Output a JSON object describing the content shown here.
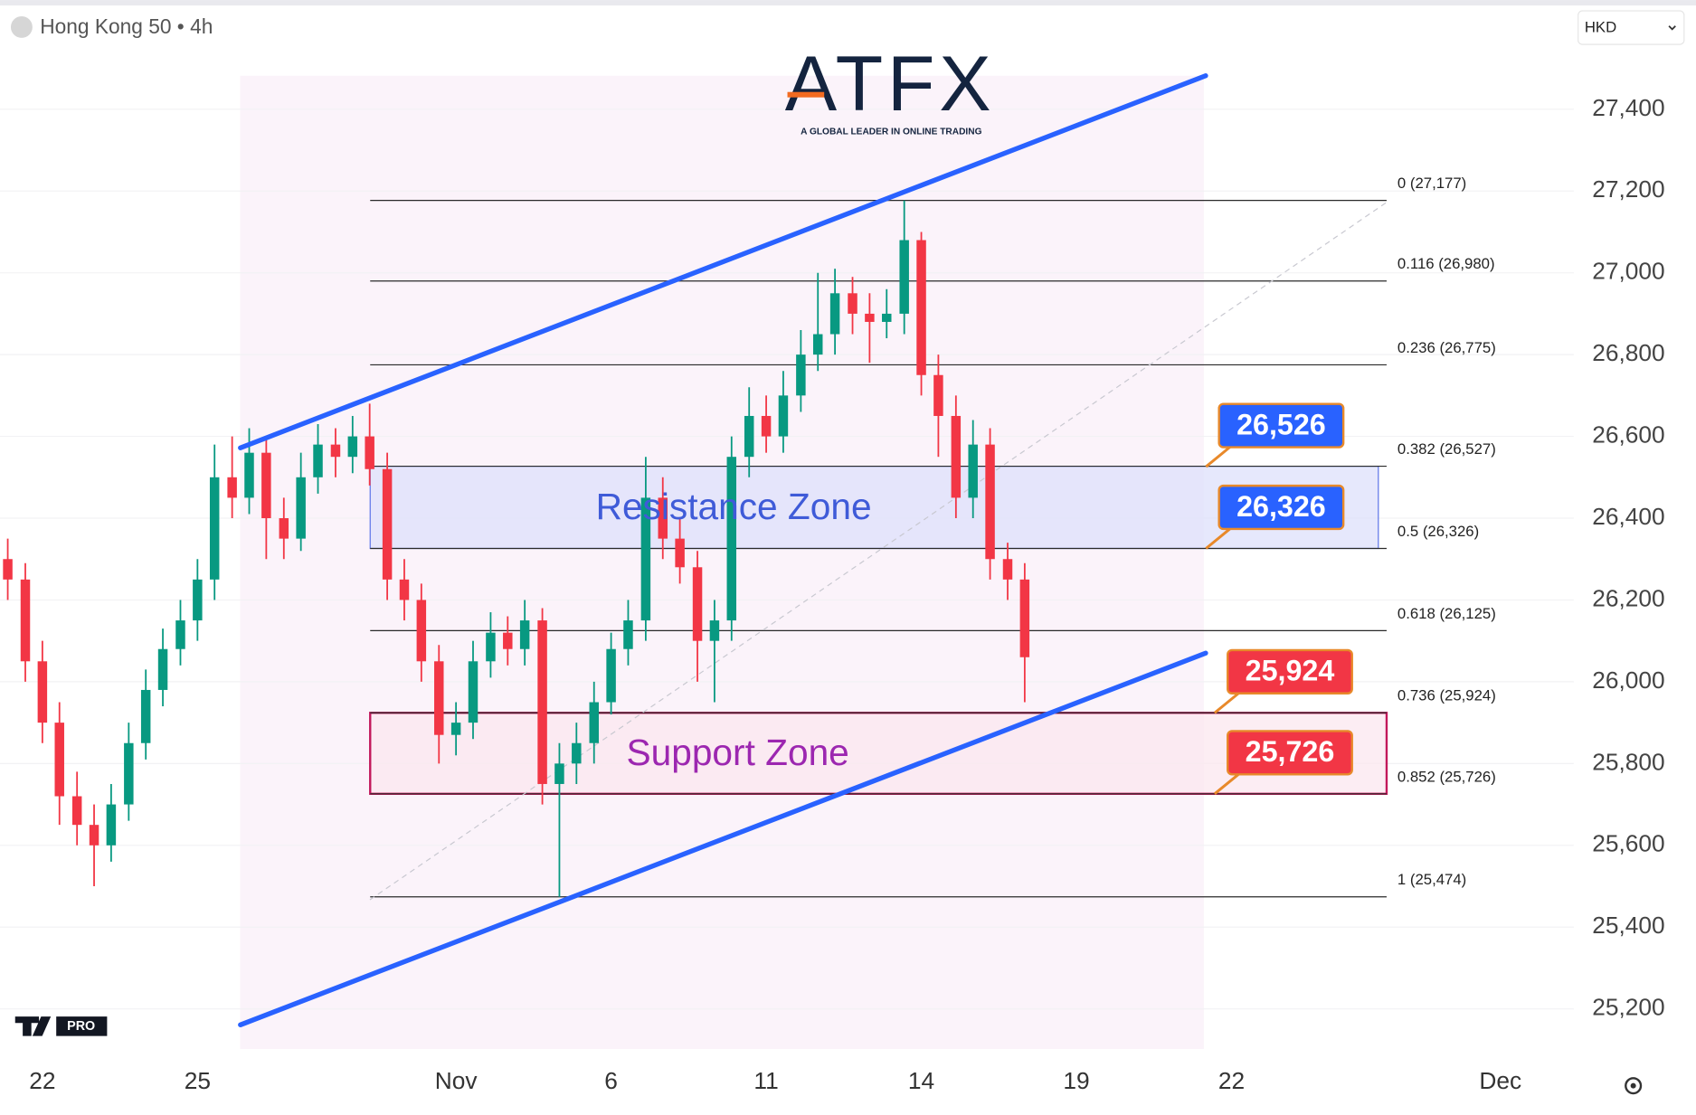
{
  "header": {
    "symbol": "Hong Kong 50 • 4h",
    "currency": "HKD"
  },
  "logo": {
    "name": "ATFX",
    "tagline": "A GLOBAL LEADER IN ONLINE TRADING"
  },
  "badge": "PRO",
  "chart_data": {
    "type": "candlestick",
    "up_color": "#089981",
    "down_color": "#f23645",
    "xlim": [
      -0.82,
      29.62
    ],
    "ylim": [
      25102,
      27667
    ],
    "grid": true,
    "yticks": [
      {
        "value": 25200,
        "label": "25,200"
      },
      {
        "value": 25400,
        "label": "25,400"
      },
      {
        "value": 25600,
        "label": "25,600"
      },
      {
        "value": 25800,
        "label": "25,800"
      },
      {
        "value": 26000,
        "label": "26,000"
      },
      {
        "value": 26200,
        "label": "26,200"
      },
      {
        "value": 26400,
        "label": "26,400"
      },
      {
        "value": 26600,
        "label": "26,600"
      },
      {
        "value": 26800,
        "label": "26,800"
      },
      {
        "value": 27000,
        "label": "27,000"
      },
      {
        "value": 27200,
        "label": "27,200"
      },
      {
        "value": 27400,
        "label": "27,400"
      }
    ],
    "xticks": [
      {
        "value": 0,
        "label": "22"
      },
      {
        "value": 3,
        "label": "25"
      },
      {
        "value": 8,
        "label": "Nov"
      },
      {
        "value": 11,
        "label": "6"
      },
      {
        "value": 14,
        "label": "11"
      },
      {
        "value": 17,
        "label": "14"
      },
      {
        "value": 20,
        "label": "19"
      },
      {
        "value": 23,
        "label": "22"
      },
      {
        "value": 28.2,
        "label": "Dec"
      }
    ],
    "x": [
      -0.67,
      -0.33,
      0,
      0.33,
      0.67,
      1,
      1.33,
      1.67,
      2,
      2.33,
      2.67,
      3,
      3.33,
      3.67,
      4,
      4.33,
      4.67,
      5,
      5.33,
      5.67,
      6,
      6.33,
      6.67,
      7,
      7.33,
      7.67,
      8,
      8.33,
      8.67,
      9,
      9.33,
      9.67,
      10,
      10.33,
      10.67,
      11,
      11.33,
      11.67,
      12,
      12.33,
      12.67,
      13,
      13.33,
      13.67,
      14,
      14.33,
      14.67,
      15,
      15.33,
      15.67,
      16,
      16.33,
      16.67,
      17,
      17.33,
      17.67,
      18,
      18.33,
      18.67,
      19
    ],
    "open": [
      26300,
      26250,
      26050,
      25900,
      25720,
      25650,
      25600,
      25700,
      25850,
      25980,
      26080,
      26150,
      26250,
      26500,
      26450,
      26560,
      26400,
      26350,
      26500,
      26580,
      26550,
      26600,
      26520,
      26250,
      26200,
      26050,
      25870,
      25900,
      26050,
      26120,
      26080,
      26150,
      25750,
      25800,
      25850,
      25950,
      26080,
      26150,
      26450,
      26350,
      26280,
      26100,
      26150,
      26550,
      26650,
      26600,
      26700,
      26800,
      26850,
      26950,
      26900,
      26880,
      26900,
      27080,
      26750,
      26650,
      26450,
      26580,
      26300,
      26250
    ],
    "high": [
      26350,
      26290,
      26100,
      25950,
      25780,
      25700,
      25750,
      25900,
      26030,
      26130,
      26200,
      26300,
      26580,
      26600,
      26620,
      26600,
      26450,
      26560,
      26630,
      26620,
      26650,
      26680,
      26560,
      26300,
      26240,
      26090,
      25950,
      26100,
      26170,
      26160,
      26200,
      26180,
      25850,
      25900,
      26000,
      26120,
      26200,
      26550,
      26500,
      26400,
      26320,
      26200,
      26600,
      26720,
      26700,
      26760,
      26860,
      27000,
      27010,
      26990,
      26950,
      26960,
      27177,
      27100,
      26800,
      26700,
      26640,
      26620,
      26340,
      26290
    ],
    "low": [
      26200,
      26000,
      25850,
      25650,
      25600,
      25500,
      25560,
      25660,
      25810,
      25940,
      26040,
      26100,
      26200,
      26400,
      26410,
      26300,
      26300,
      26320,
      26460,
      26500,
      26510,
      26480,
      26200,
      26150,
      26000,
      25800,
      25820,
      25860,
      26010,
      26040,
      26040,
      25700,
      25474,
      25750,
      25800,
      25920,
      26040,
      26100,
      26300,
      26240,
      26000,
      25950,
      26100,
      26500,
      26560,
      26560,
      26660,
      26760,
      26800,
      26850,
      26780,
      26840,
      26850,
      26700,
      26550,
      26400,
      26400,
      26250,
      26200,
      25950
    ],
    "close": [
      26250,
      26050,
      25900,
      25720,
      25650,
      25600,
      25700,
      25850,
      25980,
      26080,
      26150,
      26250,
      26500,
      26450,
      26560,
      26400,
      26350,
      26500,
      26580,
      26550,
      26600,
      26520,
      26250,
      26200,
      26050,
      25870,
      25900,
      26050,
      26120,
      26080,
      26150,
      25750,
      25800,
      25850,
      25950,
      26080,
      26150,
      26450,
      26350,
      26280,
      26100,
      26150,
      26550,
      26650,
      26600,
      26700,
      26800,
      26850,
      26950,
      26900,
      26880,
      26900,
      27080,
      26750,
      26650,
      26450,
      26580,
      26300,
      26250,
      26060
    ],
    "trendlines": [
      {
        "color": "#2962ff",
        "x": [
          3.83,
          22.5
        ],
        "values": [
          26572,
          27482
        ]
      },
      {
        "color": "#2962ff",
        "x": [
          3.83,
          22.5
        ],
        "values": [
          25161,
          26070
        ]
      }
    ],
    "fib_x": [
      6.34,
      26.0
    ],
    "fib": [
      {
        "label": "0 (27,177)",
        "value": 27177
      },
      {
        "label": "0.116 (26,980)",
        "value": 26980
      },
      {
        "label": "0.236 (26,775)",
        "value": 26775
      },
      {
        "label": "0.382 (26,527)",
        "value": 26527
      },
      {
        "label": "0.5 (26,326)",
        "value": 26326
      },
      {
        "label": "0.618 (26,125)",
        "value": 26125
      },
      {
        "label": "0.736 (25,924)",
        "value": 25924
      },
      {
        "label": "0.852 (25,726)",
        "value": 25726
      },
      {
        "label": "1 (25,474)",
        "value": 25474
      }
    ],
    "zones": [
      {
        "label": "Resistance Zone",
        "top": 26527,
        "bottom": 26326,
        "x": [
          6.34,
          25.84
        ],
        "fill": "#dde0fb",
        "stroke": "#5b73e8",
        "text_color": "#3f5bd8"
      },
      {
        "label": "Support Zone",
        "top": 25924,
        "bottom": 25726,
        "x": [
          6.34,
          26.0
        ],
        "fill": "#fbe7ef",
        "stroke": "#c2185b",
        "text_color": "#9c27b0"
      }
    ],
    "callouts": [
      {
        "label": "26,526",
        "value": 26526,
        "color": "#2962ff"
      },
      {
        "label": "26,326",
        "value": 26326,
        "color": "#2962ff"
      },
      {
        "label": "25,924",
        "value": 25924,
        "color": "#f23645"
      },
      {
        "label": "25,726",
        "value": 25726,
        "color": "#f23645"
      }
    ]
  }
}
